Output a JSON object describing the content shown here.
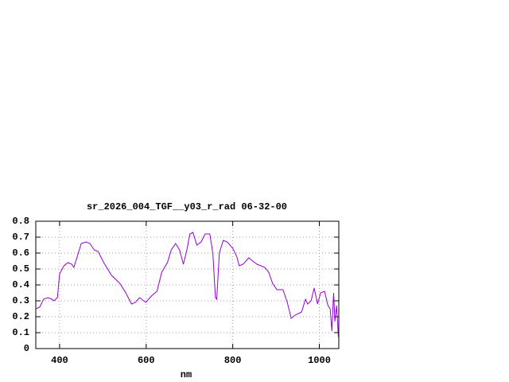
{
  "chart_data": {
    "type": "line",
    "title": "sr_2026_004_TGF__y03_r_rad 06-32-00",
    "x_label": "nm",
    "grid": true,
    "xlim": [
      345,
      1045
    ],
    "ylim": [
      0,
      0.8
    ],
    "xticks": [
      400,
      600,
      800,
      1000
    ],
    "yticks": [
      0,
      0.1,
      0.2,
      0.3,
      0.4,
      0.5,
      0.6,
      0.7,
      0.8
    ],
    "x": [
      345,
      354,
      363,
      373,
      382,
      387,
      395,
      400,
      410,
      419,
      428,
      433,
      441,
      450,
      461,
      470,
      480,
      489,
      502,
      520,
      539,
      553,
      566,
      575,
      585,
      599,
      612,
      625,
      636,
      649,
      658,
      668,
      677,
      686,
      694,
      701,
      708,
      717,
      727,
      736,
      747,
      754,
      760,
      763,
      769,
      778,
      787,
      800,
      809,
      815,
      824,
      837,
      846,
      856,
      865,
      874,
      883,
      892,
      902,
      916,
      926,
      935,
      944,
      959,
      968,
      973,
      981,
      988,
      996,
      1003,
      1012,
      1020,
      1025,
      1029,
      1033,
      1036,
      1040,
      1044
    ],
    "series": [
      {
        "color": "#9400d3",
        "values": [
          0.25,
          0.26,
          0.31,
          0.32,
          0.31,
          0.3,
          0.32,
          0.47,
          0.52,
          0.54,
          0.53,
          0.51,
          0.58,
          0.66,
          0.67,
          0.66,
          0.62,
          0.61,
          0.54,
          0.46,
          0.41,
          0.35,
          0.28,
          0.29,
          0.32,
          0.29,
          0.33,
          0.36,
          0.48,
          0.54,
          0.62,
          0.66,
          0.62,
          0.53,
          0.62,
          0.72,
          0.73,
          0.65,
          0.67,
          0.72,
          0.72,
          0.6,
          0.32,
          0.31,
          0.6,
          0.68,
          0.67,
          0.63,
          0.58,
          0.52,
          0.53,
          0.57,
          0.55,
          0.53,
          0.52,
          0.51,
          0.48,
          0.41,
          0.37,
          0.37,
          0.29,
          0.19,
          0.21,
          0.23,
          0.31,
          0.28,
          0.3,
          0.38,
          0.28,
          0.35,
          0.36,
          0.27,
          0.25,
          0.11,
          0.35,
          0.17,
          0.27,
          0.07
        ]
      }
    ]
  }
}
